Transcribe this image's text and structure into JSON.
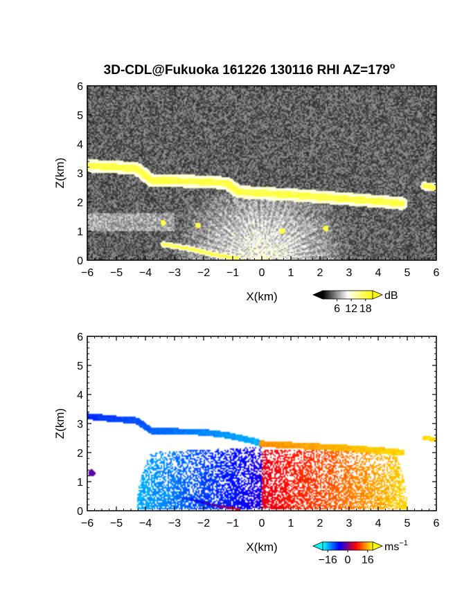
{
  "title": "3D-CDL@Fukuoka 161226 130116 RHI AZ=179",
  "title_superscript": "o",
  "chart_data": [
    {
      "type": "heatmap",
      "quantity": "backscatter intensity",
      "xlabel": "X(km)",
      "ylabel": "Z(km)",
      "xlim": [
        -6,
        6
      ],
      "ylim": [
        0,
        6
      ],
      "xticks": [
        "−6",
        "−5",
        "−4",
        "−3",
        "−2",
        "−1",
        "0",
        "1",
        "2",
        "3",
        "4",
        "5",
        "6"
      ],
      "yticks": [
        "0",
        "1",
        "2",
        "3",
        "4",
        "5",
        "6"
      ],
      "colorbar": {
        "unit": "dB",
        "ticks": [
          6,
          12,
          18
        ],
        "tick_labels": [
          "6",
          "12",
          "18"
        ],
        "range": [
          0,
          21
        ],
        "colors": [
          "#000000",
          "#ffffff",
          "#ffff00"
        ]
      },
      "background_level_db": 4,
      "features": [
        {
          "kind": "layer",
          "points": [
            [
              -6,
              3.25
            ],
            [
              -5,
              3.2
            ],
            [
              -4.3,
              3.15
            ],
            [
              -3.8,
              2.75
            ],
            [
              -2,
              2.7
            ],
            [
              -1.2,
              2.65
            ],
            [
              -0.8,
              2.35
            ],
            [
              1,
              2.25
            ],
            [
              3,
              2.1
            ],
            [
              4.3,
              2.0
            ],
            [
              4.8,
              1.95
            ]
          ],
          "thickness": 0.22,
          "level_db": 18
        },
        {
          "kind": "layer",
          "points": [
            [
              5.6,
              2.55
            ],
            [
              6,
              2.5
            ]
          ],
          "thickness": 0.15,
          "level_db": 18
        },
        {
          "kind": "layer",
          "points": [
            [
              -3.4,
              0.55
            ],
            [
              -2.5,
              0.4
            ],
            [
              -1.6,
              0.18
            ],
            [
              -0.8,
              0.05
            ]
          ],
          "thickness": 0.1,
          "level_db": 18
        },
        {
          "kind": "blob",
          "center": [
            -3.4,
            1.3
          ],
          "size": 0.1,
          "level_db": 18
        },
        {
          "kind": "blob",
          "center": [
            -2.2,
            1.2
          ],
          "size": 0.1,
          "level_db": 18
        },
        {
          "kind": "blob",
          "center": [
            0.7,
            1.0
          ],
          "size": 0.1,
          "level_db": 18
        },
        {
          "kind": "blob",
          "center": [
            2.2,
            1.1
          ],
          "size": 0.1,
          "level_db": 18
        }
      ]
    },
    {
      "type": "heatmap",
      "quantity": "radial velocity",
      "xlabel": "X(km)",
      "ylabel": "Z(km)",
      "xlim": [
        -6,
        6
      ],
      "ylim": [
        0,
        6
      ],
      "xticks": [
        "−6",
        "−5",
        "−4",
        "−3",
        "−2",
        "−1",
        "0",
        "1",
        "2",
        "3",
        "4",
        "5",
        "6"
      ],
      "yticks": [
        "0",
        "1",
        "2",
        "3",
        "4",
        "5",
        "6"
      ],
      "colorbar": {
        "unit": "ms",
        "unit_superscript": "−1",
        "ticks": [
          -16,
          0,
          16
        ],
        "tick_labels": [
          "−16",
          "0",
          "16"
        ],
        "range": [
          -20,
          20
        ],
        "colors": [
          "#00ffff",
          "#0000ff",
          "#ff0000",
          "#ffff00"
        ]
      },
      "features": [
        {
          "kind": "layer",
          "points": [
            [
              -6,
              3.25
            ],
            [
              -5,
              3.15
            ],
            [
              -4.3,
              3.1
            ],
            [
              -3.8,
              2.75
            ],
            [
              -2,
              2.7
            ],
            [
              -1.2,
              2.6
            ],
            [
              -0.3,
              2.4
            ],
            [
              0,
              2.3
            ]
          ],
          "thickness": 0.22,
          "velocity": [
            -9,
            -16
          ]
        },
        {
          "kind": "layer",
          "points": [
            [
              0,
              2.3
            ],
            [
              1,
              2.25
            ],
            [
              3,
              2.15
            ],
            [
              4.3,
              2.05
            ],
            [
              4.8,
              2.0
            ]
          ],
          "thickness": 0.22,
          "velocity": [
            14,
            18
          ]
        },
        {
          "kind": "layer",
          "points": [
            [
              5.6,
              2.5
            ],
            [
              6,
              2.45
            ]
          ],
          "thickness": 0.15,
          "velocity": [
            18,
            18
          ]
        },
        {
          "kind": "region",
          "x": [
            -4.3,
            0
          ],
          "z": [
            0.05,
            2.2
          ],
          "velocity": [
            -5,
            -16
          ]
        },
        {
          "kind": "region",
          "x": [
            0,
            5
          ],
          "z": [
            0.05,
            2.1
          ],
          "velocity": [
            5,
            18
          ]
        },
        {
          "kind": "layer",
          "points": [
            [
              -3.4,
              0.55
            ],
            [
              -2.5,
              0.4
            ],
            [
              -1.6,
              0.18
            ],
            [
              -0.8,
              0.05
            ]
          ],
          "thickness": 0.08,
          "velocity": [
            -16,
            5
          ]
        },
        {
          "kind": "blob",
          "center": [
            -5.85,
            1.3
          ],
          "size": 0.12,
          "velocity": [
            -2,
            -2
          ]
        }
      ]
    }
  ]
}
